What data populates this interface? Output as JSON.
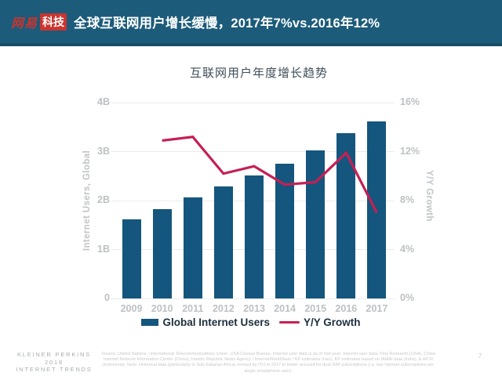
{
  "header": {
    "logo_netease": "网易",
    "logo_tech": "科技",
    "title": "全球互联网用户增长缓慢，2017年7%vs.2016年12%"
  },
  "chart_data": {
    "type": "bar",
    "title": "互联网用户年度增长趋势",
    "categories": [
      "2009",
      "2010",
      "2011",
      "2012",
      "2013",
      "2014",
      "2015",
      "2016",
      "2017"
    ],
    "series": [
      {
        "name": "Global Internet Users",
        "type": "bar",
        "axis": "left",
        "unit": "B",
        "color": "#14567d",
        "values": [
          1.62,
          1.83,
          2.06,
          2.29,
          2.52,
          2.76,
          3.02,
          3.38,
          3.62
        ]
      },
      {
        "name": "Y/Y Growth",
        "type": "line",
        "axis": "right",
        "unit": "%",
        "color": "#c51f54",
        "values": [
          null,
          12.9,
          13.2,
          10.2,
          10.8,
          9.3,
          9.5,
          11.9,
          7.0
        ]
      }
    ],
    "left_axis": {
      "label": "Internet Users, Global",
      "min": 0,
      "max": 4,
      "ticks": [
        "4B",
        "3B",
        "2B",
        "1B",
        "0"
      ]
    },
    "right_axis": {
      "label": "Y/Y Growth",
      "min": 0,
      "max": 16,
      "ticks": [
        "16%",
        "12%",
        "8%",
        "4%",
        "0%"
      ]
    },
    "grid": true,
    "legend_position": "bottom"
  },
  "footer": {
    "brand_line1": "KLEINER PERKINS",
    "brand_line2": "2018",
    "brand_line3": "INTERNET TRENDS",
    "source_note": "Source: United Nations / International Telecommunications Union, USA Census Bureau. Internet user data is as of mid-year. Internet user data: Pew Research (USA), China Internet Network Information Center (China), Islamic Republic News Agency / InternetWorldStats / KP estimates (Iran), KP estimates based on IAMAI data (India), & APJII (Indonesia). Note: Historical data (particularly in Sub-Saharan Africa) revised by ITU in 2017 to better account for dual-SIM subscriptions (i.e. two Internet subscriptions per single smartphone user).",
    "page_number": "7"
  },
  "colors": {
    "header_bg": "#1c5b7a",
    "header_edge": "#164d66",
    "logo_red": "#c9352f",
    "bar": "#14567d",
    "line": "#c51f54",
    "grid": "#e9ebec",
    "axis_text": "#bdc1c4",
    "chart_title_text": "#3f4e59",
    "legend_text": "#1c2f3e",
    "footer_text": "#c5c8ca"
  }
}
